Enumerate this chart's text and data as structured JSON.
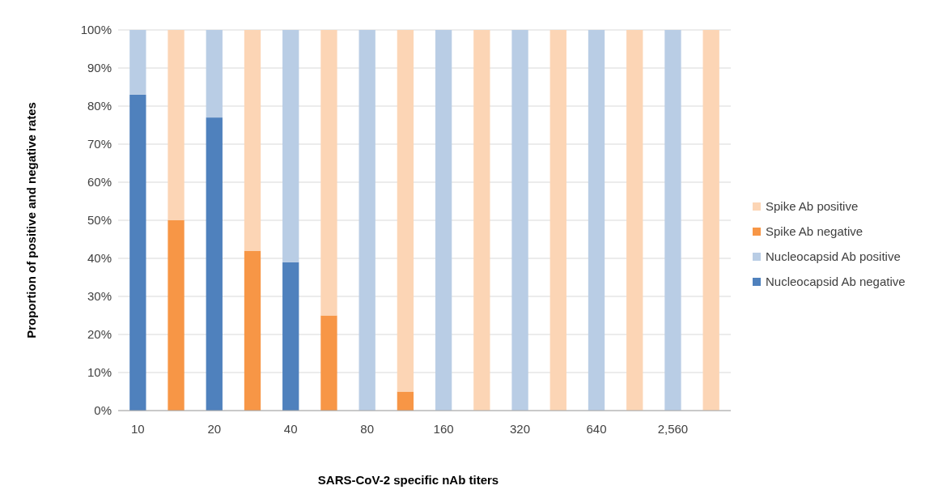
{
  "chart_data": {
    "type": "bar",
    "stacked": true,
    "xlabel": "SARS-CoV-2 specific nAb titers",
    "ylabel": "Proportion of positive and negative rates",
    "categories": [
      "10",
      null,
      "20",
      null,
      "40",
      null,
      "80",
      null,
      "160",
      null,
      "320",
      null,
      "640",
      null,
      "2,560",
      null
    ],
    "series": [
      {
        "name": "Nucleocapsid Ab negative",
        "color": "#4f81bd",
        "values": [
          83,
          null,
          77,
          null,
          39,
          null,
          0,
          null,
          0,
          null,
          0,
          null,
          0,
          null,
          0,
          null
        ]
      },
      {
        "name": "Nucleocapsid Ab positive",
        "color": "#b9cde5",
        "values": [
          17,
          null,
          23,
          null,
          61,
          null,
          100,
          null,
          100,
          null,
          100,
          null,
          100,
          null,
          100,
          null
        ]
      },
      {
        "name": "Spike Ab negative",
        "color": "#f79646",
        "values": [
          null,
          50,
          null,
          42,
          null,
          25,
          null,
          5,
          null,
          0,
          null,
          0,
          null,
          0,
          null,
          0
        ]
      },
      {
        "name": "Spike Ab positive",
        "color": "#fcd5b5",
        "values": [
          null,
          50,
          null,
          58,
          null,
          75,
          null,
          95,
          null,
          100,
          null,
          100,
          null,
          100,
          null,
          100
        ]
      }
    ],
    "ylim": [
      0,
      100
    ],
    "yticks": [
      {
        "value": 0,
        "label": "0%"
      },
      {
        "value": 10,
        "label": "10%"
      },
      {
        "value": 20,
        "label": "20%"
      },
      {
        "value": 30,
        "label": "30%"
      },
      {
        "value": 40,
        "label": "40%"
      },
      {
        "value": 50,
        "label": "50%"
      },
      {
        "value": 60,
        "label": "60%"
      },
      {
        "value": 70,
        "label": "70%"
      },
      {
        "value": 80,
        "label": "80%"
      },
      {
        "value": 90,
        "label": "90%"
      },
      {
        "value": 100,
        "label": "100%"
      }
    ],
    "grid": "y",
    "legend": "right"
  }
}
